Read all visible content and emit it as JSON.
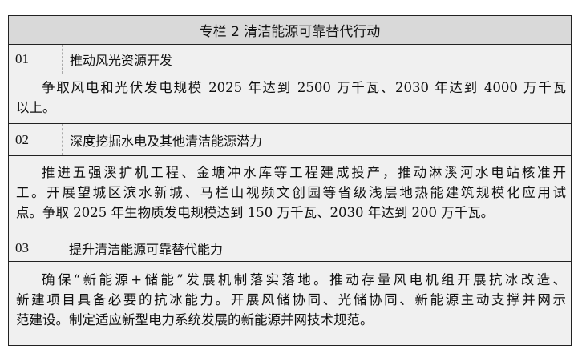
{
  "header": {
    "title": "专栏 2  清洁能源可靠替代行动"
  },
  "sections": [
    {
      "num": "01",
      "title": "推动风光资源开发",
      "lines": [
        "争取风电和光伏发电规模 2025 年达到 2500 万千瓦、2030 年达到 4000 万千瓦",
        "以上。"
      ]
    },
    {
      "num": "02",
      "title": "深度挖掘水电及其他清洁能源潜力",
      "lines": [
        "推进五强溪扩机工程、金塘冲水库等工程建成投产，推动淋溪河水电站核准开",
        "工。开展望城区滨水新城、马栏山视频文创园等省级浅层地热能建筑规模化应用试",
        "点。争取 2025 年生物质发电规模达到 150 万千瓦、2030 年达到 200 万千瓦。"
      ]
    },
    {
      "num": "03",
      "title": "提升清洁能源可靠替代能力",
      "lines": [
        "确保“新能源+储能”发展机制落实落地。推动存量风电机组开展抗冰改造、",
        "新建项目具备必要的抗冰能力。开展风储协同、光储协同、新能源主动支撑并网示",
        "范建设。制定适应新型电力系统发展的新能源并网技术规范。"
      ]
    }
  ]
}
